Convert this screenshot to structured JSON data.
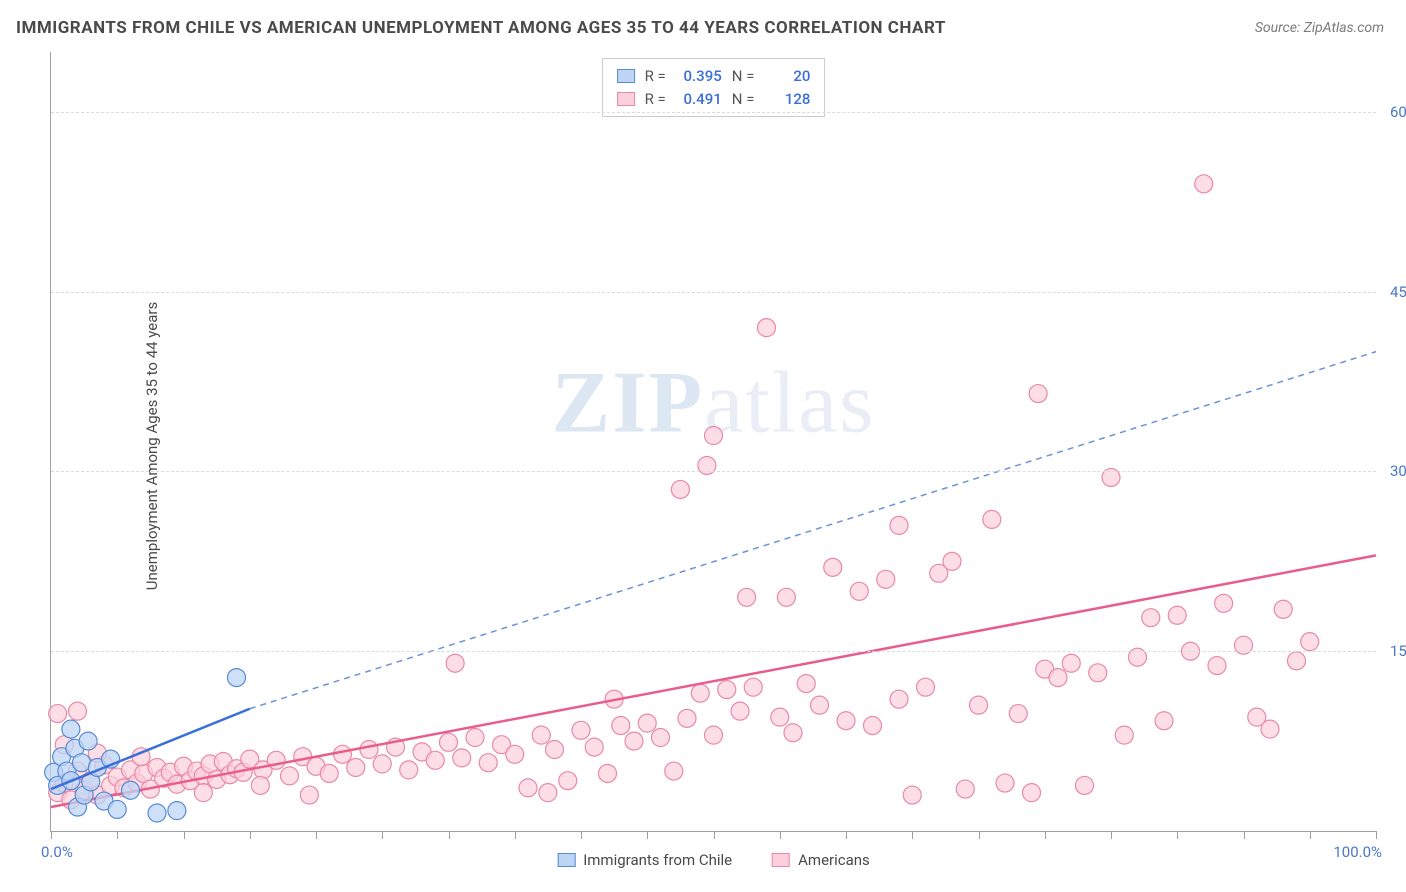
{
  "title": "IMMIGRANTS FROM CHILE VS AMERICAN UNEMPLOYMENT AMONG AGES 35 TO 44 YEARS CORRELATION CHART",
  "source": "Source: ZipAtlas.com",
  "ylabel": "Unemployment Among Ages 35 to 44 years",
  "watermark_a": "ZIP",
  "watermark_b": "atlas",
  "chart": {
    "type": "scatter",
    "xlim": [
      0,
      100
    ],
    "ylim": [
      0,
      65
    ],
    "yticks": [
      15,
      30,
      45,
      60
    ],
    "ytick_labels": [
      "15.0%",
      "30.0%",
      "45.0%",
      "60.0%"
    ],
    "xticks": [
      0,
      5,
      10,
      15,
      20,
      25,
      30,
      35,
      40,
      45,
      50,
      55,
      60,
      65,
      70,
      75,
      80,
      85,
      90,
      95,
      100
    ],
    "xlabel_min": "0.0%",
    "xlabel_max": "100.0%",
    "background_color": "#ffffff",
    "grid_color": "#d8dce0",
    "axis_color": "#9aa0a6",
    "tick_label_color": "#4a78c8"
  },
  "stats": {
    "series1": {
      "R": "0.395",
      "N": "20"
    },
    "series2": {
      "R": "0.491",
      "N": "128"
    },
    "label_R": "R =",
    "label_N": "N ="
  },
  "series": {
    "s1": {
      "name": "Immigrants from Chile",
      "marker_color_fill": "#bcd5f5",
      "marker_color_stroke": "#5a8ad4",
      "marker_opacity": 0.75,
      "marker_radius": 9,
      "trend": {
        "x1": 0,
        "y1": 3.5,
        "x2": 15,
        "y2": 10.2,
        "stroke": "#3a6fd8",
        "width": 2.5,
        "dash": "none"
      },
      "trend_ext": {
        "x1": 15,
        "y1": 10.2,
        "x2": 100,
        "y2": 40.0,
        "stroke": "#6a93d8",
        "width": 1.5,
        "dash": "6,5"
      },
      "points": [
        [
          0.2,
          4.9
        ],
        [
          0.5,
          3.8
        ],
        [
          0.8,
          6.2
        ],
        [
          1.2,
          5.0
        ],
        [
          1.5,
          8.5
        ],
        [
          1.5,
          4.2
        ],
        [
          1.8,
          6.9
        ],
        [
          2.0,
          2.0
        ],
        [
          2.3,
          5.7
        ],
        [
          2.5,
          3.0
        ],
        [
          2.8,
          7.5
        ],
        [
          3.0,
          4.1
        ],
        [
          3.5,
          5.3
        ],
        [
          4.0,
          2.5
        ],
        [
          4.5,
          6.0
        ],
        [
          5.0,
          1.8
        ],
        [
          6.0,
          3.4
        ],
        [
          8.0,
          1.5
        ],
        [
          9.5,
          1.7
        ],
        [
          14.0,
          12.8
        ]
      ]
    },
    "s2": {
      "name": "Americans",
      "marker_color_fill": "#fccfdc",
      "marker_color_stroke": "#e88aa6",
      "marker_opacity": 0.7,
      "marker_radius": 9,
      "trend": {
        "x1": 0,
        "y1": 2.0,
        "x2": 100,
        "y2": 23.0,
        "stroke": "#e85d8a",
        "width": 2.5,
        "dash": "none"
      },
      "points": [
        [
          0.5,
          3.2
        ],
        [
          1.0,
          4.0
        ],
        [
          1.5,
          2.6
        ],
        [
          2.0,
          5.0
        ],
        [
          2.5,
          3.4
        ],
        [
          3.0,
          4.2
        ],
        [
          3.5,
          3.0
        ],
        [
          4.0,
          5.5
        ],
        [
          4.5,
          3.8
        ],
        [
          5.0,
          4.5
        ],
        [
          5.5,
          3.6
        ],
        [
          6.0,
          5.1
        ],
        [
          6.5,
          4.0
        ],
        [
          7.0,
          4.8
        ],
        [
          7.5,
          3.5
        ],
        [
          8.0,
          5.3
        ],
        [
          8.5,
          4.4
        ],
        [
          9.0,
          4.9
        ],
        [
          9.5,
          3.9
        ],
        [
          10.0,
          5.4
        ],
        [
          10.5,
          4.2
        ],
        [
          11.0,
          5.0
        ],
        [
          11.5,
          4.6
        ],
        [
          12.0,
          5.6
        ],
        [
          12.5,
          4.3
        ],
        [
          13.0,
          5.8
        ],
        [
          13.5,
          4.7
        ],
        [
          14.0,
          5.2
        ],
        [
          14.5,
          4.9
        ],
        [
          15.0,
          6.0
        ],
        [
          16.0,
          5.1
        ],
        [
          17.0,
          5.9
        ],
        [
          18.0,
          4.6
        ],
        [
          19.0,
          6.2
        ],
        [
          20.0,
          5.4
        ],
        [
          21.0,
          4.8
        ],
        [
          22.0,
          6.4
        ],
        [
          23.0,
          5.3
        ],
        [
          24.0,
          6.8
        ],
        [
          25.0,
          5.6
        ],
        [
          26.0,
          7.0
        ],
        [
          27.0,
          5.1
        ],
        [
          28.0,
          6.6
        ],
        [
          29.0,
          5.9
        ],
        [
          30.0,
          7.4
        ],
        [
          31.0,
          6.1
        ],
        [
          32.0,
          7.8
        ],
        [
          33.0,
          5.7
        ],
        [
          34.0,
          7.2
        ],
        [
          35.0,
          6.4
        ],
        [
          36.0,
          3.6
        ],
        [
          37.0,
          8.0
        ],
        [
          38.0,
          6.8
        ],
        [
          39.0,
          4.2
        ],
        [
          40.0,
          8.4
        ],
        [
          41.0,
          7.0
        ],
        [
          42.0,
          4.8
        ],
        [
          43.0,
          8.8
        ],
        [
          44.0,
          7.5
        ],
        [
          30.5,
          14.0
        ],
        [
          45.0,
          9.0
        ],
        [
          46.0,
          7.8
        ],
        [
          47.0,
          5.0
        ],
        [
          48.0,
          9.4
        ],
        [
          49.0,
          11.5
        ],
        [
          50.0,
          8.0
        ],
        [
          51.0,
          11.8
        ],
        [
          52.0,
          10.0
        ],
        [
          53.0,
          12.0
        ],
        [
          54.0,
          42.0
        ],
        [
          55.0,
          9.5
        ],
        [
          50.0,
          33.0
        ],
        [
          56.0,
          8.2
        ],
        [
          49.5,
          30.5
        ],
        [
          57.0,
          12.3
        ],
        [
          58.0,
          10.5
        ],
        [
          59.0,
          22.0
        ],
        [
          60.0,
          9.2
        ],
        [
          61.0,
          20.0
        ],
        [
          62.0,
          8.8
        ],
        [
          63.0,
          21.0
        ],
        [
          64.0,
          11.0
        ],
        [
          52.5,
          19.5
        ],
        [
          65.0,
          3.0
        ],
        [
          66.0,
          12.0
        ],
        [
          67.0,
          21.5
        ],
        [
          68.0,
          22.5
        ],
        [
          64.0,
          25.5
        ],
        [
          69.0,
          3.5
        ],
        [
          70.0,
          10.5
        ],
        [
          71.0,
          26.0
        ],
        [
          72.0,
          4.0
        ],
        [
          73.0,
          9.8
        ],
        [
          74.0,
          3.2
        ],
        [
          75.0,
          13.5
        ],
        [
          74.5,
          36.5
        ],
        [
          76.0,
          12.8
        ],
        [
          77.0,
          14.0
        ],
        [
          78.0,
          3.8
        ],
        [
          79.0,
          13.2
        ],
        [
          80.0,
          29.5
        ],
        [
          81.0,
          8.0
        ],
        [
          82.0,
          14.5
        ],
        [
          83.0,
          17.8
        ],
        [
          84.0,
          9.2
        ],
        [
          85.0,
          18.0
        ],
        [
          86.0,
          15.0
        ],
        [
          87.0,
          54.0
        ],
        [
          88.0,
          13.8
        ],
        [
          90.0,
          15.5
        ],
        [
          88.5,
          19.0
        ],
        [
          91.0,
          9.5
        ],
        [
          92.0,
          8.5
        ],
        [
          93.0,
          18.5
        ],
        [
          94.0,
          14.2
        ],
        [
          95.0,
          15.8
        ],
        [
          47.5,
          28.5
        ],
        [
          2.0,
          10.0
        ],
        [
          0.5,
          9.8
        ],
        [
          1.0,
          7.2
        ],
        [
          3.5,
          6.5
        ],
        [
          6.8,
          6.2
        ],
        [
          11.5,
          3.2
        ],
        [
          15.8,
          3.8
        ],
        [
          19.5,
          3.0
        ],
        [
          37.5,
          3.2
        ],
        [
          42.5,
          11.0
        ],
        [
          55.5,
          19.5
        ]
      ]
    }
  },
  "legend": {
    "s1_label": "Immigrants from Chile",
    "s2_label": "Americans"
  }
}
